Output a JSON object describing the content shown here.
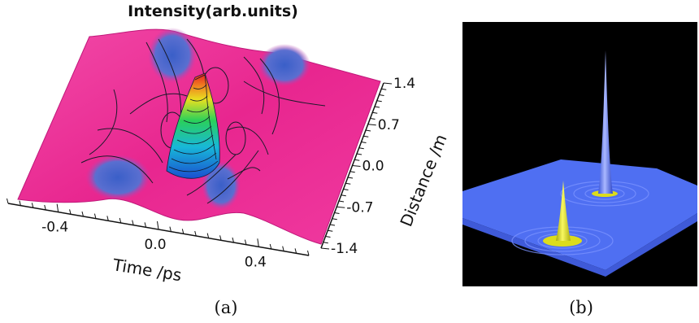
{
  "chart_data": [
    {
      "panel": "(a)",
      "type": "surface",
      "title": "Intensity(arb.units)",
      "xlabel": "Time /ps",
      "ylabel": "Distance /m",
      "x_ticks": [
        "-0.4",
        "0.0",
        "0.4"
      ],
      "y_ticks": [
        "1.4",
        "0.7",
        "0.0",
        "-0.7",
        "-1.4"
      ],
      "xlim": [
        -0.6,
        0.6
      ],
      "ylim": [
        -1.4,
        1.4
      ],
      "colors": {
        "background_level": "#f0289a",
        "low": "#3a5fc8",
        "peak_gradient": [
          "#1a4fd0",
          "#18b8d8",
          "#2ad05a",
          "#e8e020",
          "#f08020",
          "#e82020"
        ]
      }
    },
    {
      "panel": "(b)",
      "type": "surface",
      "background": "#000000",
      "colors": {
        "surface": "#4f6ff2",
        "peaks": "#dcdc1c"
      }
    }
  ]
}
